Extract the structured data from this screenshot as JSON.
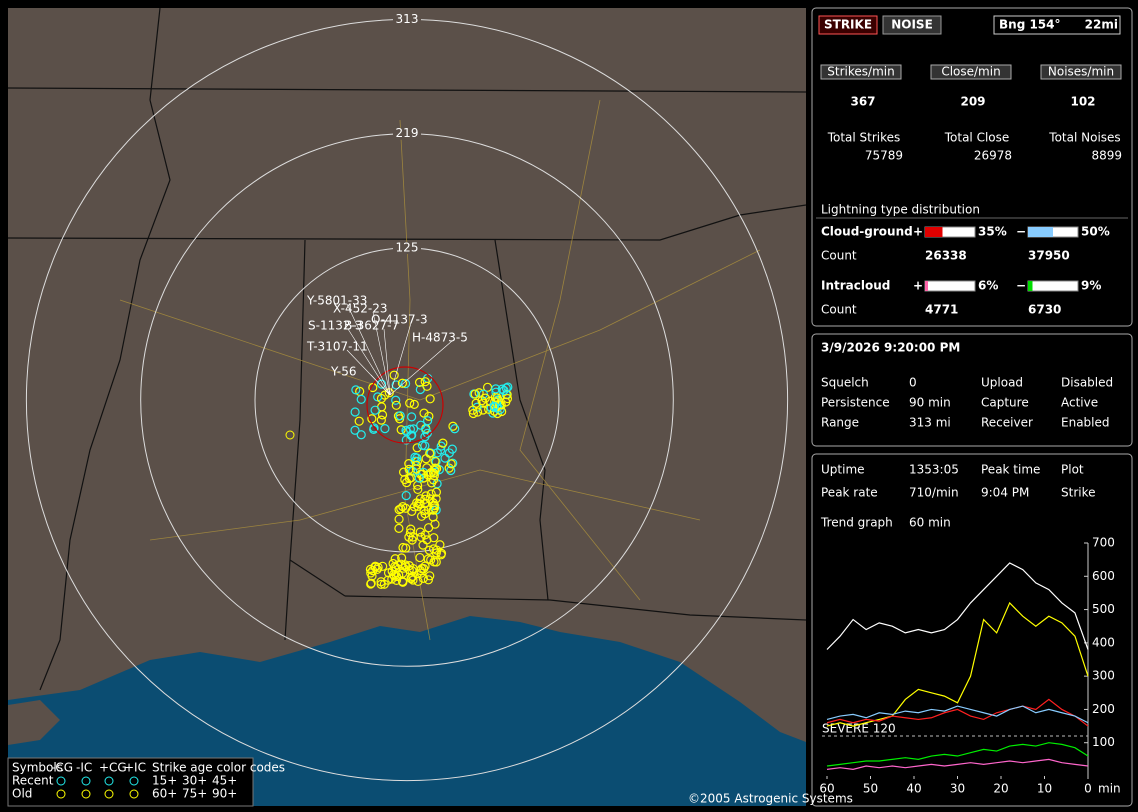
{
  "map": {
    "range_rings": [
      313,
      219,
      125
    ],
    "storm_labels": [
      "Y-5801-33",
      "X-452-23",
      "S-1132-3",
      "B-3627-7",
      "O-4137-3",
      "H-4873-5",
      "T-3107-11",
      "Y-56"
    ],
    "legend": {
      "symbols_title": "Symbols",
      "columns": [
        "-CG",
        "-IC",
        "+CG",
        "+IC"
      ],
      "age_title": "Strike age color codes",
      "rows": [
        {
          "name": "Recent",
          "ages": [
            "15+",
            "30+",
            "45+"
          ]
        },
        {
          "name": "Old",
          "ages": [
            "60+",
            "75+",
            "90+"
          ]
        }
      ]
    },
    "copyright": "©2005 Astrogenic Systems"
  },
  "status": {
    "buttons": [
      "STRIKE",
      "NOISE"
    ],
    "bearing": "Bng 154°",
    "distance": "22mi",
    "rates": [
      {
        "label": "Strikes/min",
        "value": 367,
        "color": "#ff1a1a"
      },
      {
        "label": "Close/min",
        "value": 209,
        "color": "#ffffff"
      },
      {
        "label": "Noises/min",
        "value": 102,
        "color": "#ffff00"
      }
    ],
    "totals": [
      {
        "label": "Total Strikes",
        "value": 75789
      },
      {
        "label": "Total Close",
        "value": 26978
      },
      {
        "label": "Total Noises",
        "value": 8899
      }
    ],
    "distribution": {
      "title": "Lightning type distribution",
      "count_label": "Count",
      "rows": [
        {
          "name": "Cloud-ground",
          "positive": {
            "sign": "+",
            "value": 35,
            "label": "35%",
            "count": 26338,
            "color": "#e00000"
          },
          "negative": {
            "sign": "−",
            "value": 50,
            "label": "50%",
            "count": 37950,
            "color": "#88ccff"
          }
        },
        {
          "name": "Intracloud",
          "positive": {
            "sign": "+",
            "value": 6,
            "label": "6%",
            "count": 4771,
            "color": "#ff66aa"
          },
          "negative": {
            "sign": "−",
            "value": 9,
            "label": "9%",
            "count": 6730,
            "color": "#00dd00"
          }
        }
      ]
    }
  },
  "settings": {
    "datetime": "3/9/2026 9:20:00 PM",
    "rows": [
      {
        "label": "Squelch",
        "value": "0",
        "label2": "Upload",
        "value2": "Disabled",
        "color2": "#bbbbbb"
      },
      {
        "label": "Persistence",
        "value": "90 min",
        "label2": "Capture",
        "value2": "Active",
        "color2": "#33ee33"
      },
      {
        "label": "Range",
        "value": "313 mi",
        "label2": "Receiver",
        "value2": "Enabled",
        "color2": "#33ee33"
      }
    ]
  },
  "stats": {
    "rows": [
      [
        "Uptime",
        "1353:05",
        "Peak time",
        "Plot"
      ],
      [
        "Peak rate",
        "710/min",
        "9:04 PM",
        "Strike"
      ],
      [
        "Trend graph",
        "60 min"
      ]
    ]
  },
  "trend": {
    "type": "line",
    "x": [
      60,
      57,
      54,
      51,
      48,
      45,
      42,
      39,
      36,
      33,
      30,
      27,
      24,
      21,
      18,
      15,
      12,
      9,
      6,
      3,
      0
    ],
    "x_unit": "min",
    "xlim": [
      60,
      0
    ],
    "xticks": [
      60,
      50,
      40,
      30,
      20,
      10,
      0
    ],
    "ylim": [
      0,
      700
    ],
    "yticks": [
      100,
      200,
      300,
      400,
      500,
      600,
      700
    ],
    "severe": {
      "label": "SEVERE 120",
      "value": 120
    },
    "series": [
      {
        "color": "#ffffff",
        "values": [
          380,
          420,
          470,
          440,
          460,
          450,
          430,
          440,
          430,
          440,
          470,
          520,
          560,
          600,
          640,
          620,
          580,
          560,
          520,
          490,
          380
        ]
      },
      {
        "color": "#ffff00",
        "values": [
          150,
          160,
          150,
          160,
          170,
          180,
          230,
          260,
          250,
          240,
          220,
          300,
          470,
          430,
          520,
          480,
          450,
          480,
          460,
          420,
          300
        ]
      },
      {
        "color": "#ff2020",
        "values": [
          160,
          170,
          160,
          170,
          165,
          180,
          175,
          170,
          175,
          190,
          200,
          180,
          170,
          190,
          200,
          210,
          200,
          230,
          200,
          180,
          150
        ]
      },
      {
        "color": "#88ccff",
        "values": [
          170,
          180,
          185,
          175,
          190,
          185,
          195,
          190,
          200,
          195,
          210,
          200,
          190,
          180,
          200,
          210,
          190,
          200,
          190,
          180,
          160
        ]
      },
      {
        "color": "#00ee00",
        "values": [
          30,
          35,
          40,
          45,
          45,
          50,
          55,
          50,
          60,
          65,
          60,
          70,
          80,
          75,
          90,
          95,
          90,
          100,
          95,
          85,
          60
        ]
      },
      {
        "color": "#ff66cc",
        "values": [
          20,
          25,
          20,
          30,
          25,
          30,
          25,
          30,
          35,
          30,
          35,
          40,
          35,
          40,
          45,
          40,
          45,
          50,
          40,
          35,
          30
        ]
      }
    ]
  }
}
